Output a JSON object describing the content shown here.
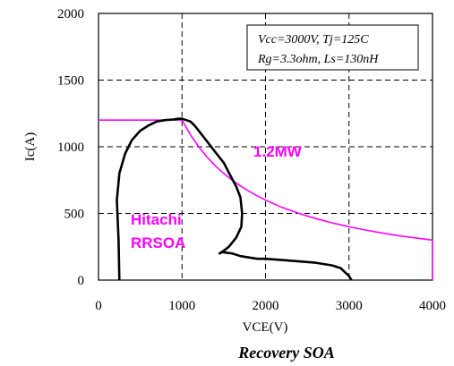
{
  "chart_data": {
    "type": "line",
    "caption": "Recovery SOA",
    "xlabel": "VCE(V)",
    "ylabel": "Ic(A)",
    "xlim": [
      0,
      4000
    ],
    "ylim": [
      0,
      2000
    ],
    "xticks": [
      0,
      1000,
      2000,
      3000,
      4000
    ],
    "yticks": [
      0,
      500,
      1000,
      1500,
      2000
    ],
    "grid": true,
    "conditions": [
      "Vcc=3000V, Tj=125C",
      "Rg=3.3ohm, Ls=130nH"
    ],
    "annotations": {
      "power_limit": "1.2MW",
      "rrsoa_line1": "Hitachi",
      "rrsoa_line2": "RRSOA"
    },
    "colors": {
      "rrsoa": "#ff00ff",
      "waveform": "#000000",
      "grid": "#000000"
    },
    "series": [
      {
        "label": "rrsoa",
        "x": [
          0,
          1000,
          1100,
          1200,
          1300,
          1400,
          1500,
          1600,
          1700,
          1800,
          1900,
          2000,
          2200,
          2400,
          2600,
          2800,
          3000,
          3200,
          3400,
          3600,
          3800,
          4000,
          4000
        ],
        "y": [
          1200,
          1200,
          1091,
          1000,
          923,
          857,
          800,
          750,
          706,
          667,
          632,
          600,
          545,
          500,
          462,
          429,
          400,
          375,
          353,
          333,
          316,
          300,
          0
        ]
      },
      {
        "label": "waveform",
        "x": [
          250,
          240,
          220,
          250,
          320,
          400,
          500,
          600,
          700,
          800,
          900,
          950,
          1000,
          1050,
          1100,
          1150,
          1200,
          1300,
          1400,
          1500,
          1550,
          1600,
          1650,
          1700,
          1720,
          1710,
          1650,
          1600,
          1560,
          1500,
          1450,
          1480,
          1600,
          1700,
          1800,
          1900,
          2000,
          2200,
          2400,
          2600,
          2800,
          2900,
          2950,
          3000,
          3030
        ],
        "y": [
          0,
          300,
          600,
          800,
          950,
          1050,
          1120,
          1160,
          1190,
          1200,
          1205,
          1210,
          1210,
          1200,
          1190,
          1160,
          1120,
          1040,
          960,
          880,
          820,
          760,
          700,
          620,
          500,
          400,
          320,
          280,
          250,
          220,
          200,
          210,
          200,
          180,
          170,
          160,
          160,
          150,
          140,
          130,
          110,
          90,
          60,
          30,
          0
        ]
      }
    ]
  }
}
